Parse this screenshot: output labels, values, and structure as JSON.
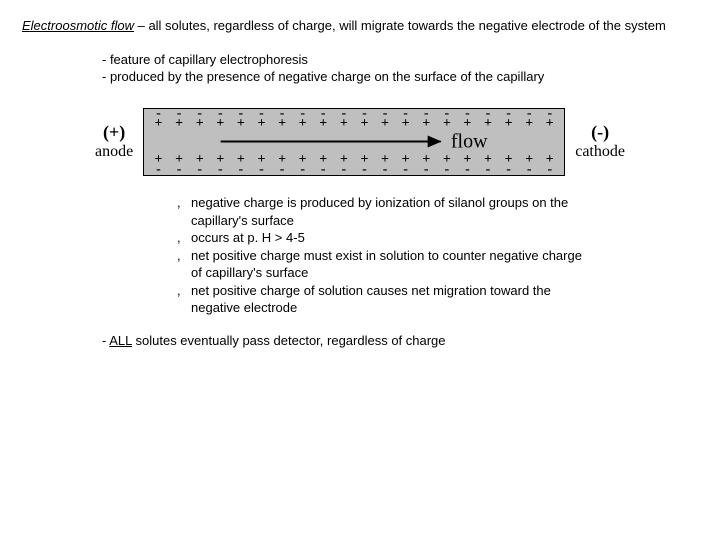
{
  "intro": {
    "term": "Electroosmotic flow",
    "rest": " – all solutes, regardless of charge, will migrate towards the negative electrode of the system"
  },
  "sublist": {
    "item1": "- feature of capillary electrophoresis",
    "item2": "-  produced by the presence of negative charge on the surface of the capillary"
  },
  "diagram": {
    "anode_sign": "(+)",
    "anode_label": "anode",
    "cathode_sign": "(-)",
    "cathode_label": "cathode",
    "flow_label": "flow",
    "minus": "-",
    "plus": "+"
  },
  "notes": {
    "b": ",",
    "n1a": "negative charge is produced by ionization of silanol groups on the",
    "n1b": " capillary's surface",
    "n2": "occurs at p. H > 4-5",
    "n3a": "net positive charge must exist in solution to counter negative charge",
    "n3b": "of capillary's surface",
    "n4a": "net positive charge of solution causes net migration toward the",
    "n4b": "negative electrode"
  },
  "final": {
    "dash": "- ",
    "all": "ALL",
    "rest": " solutes eventually pass detector, regardless of charge"
  }
}
